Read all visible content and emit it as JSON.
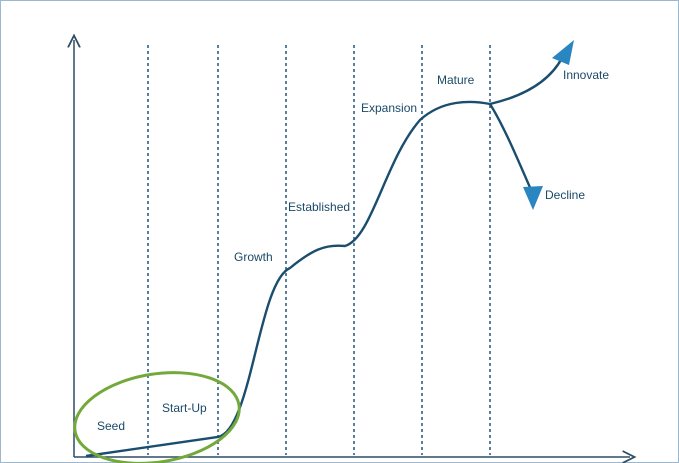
{
  "diagram": {
    "stages": [
      {
        "key": "seed",
        "label": "Seed"
      },
      {
        "key": "startup",
        "label": "Start-Up"
      },
      {
        "key": "growth",
        "label": "Growth"
      },
      {
        "key": "established",
        "label": "Established"
      },
      {
        "key": "expansion",
        "label": "Expansion"
      },
      {
        "key": "mature",
        "label": "Mature"
      }
    ],
    "outcomes": [
      {
        "key": "innovate",
        "label": "Innovate"
      },
      {
        "key": "decline",
        "label": "Decline"
      }
    ],
    "highlight": {
      "covers": [
        "Seed",
        "Start-Up"
      ]
    },
    "colors": {
      "curve": "#1a4d6e",
      "arrow_head": "#2a86c0",
      "divider": "#2e5f86",
      "axis": "#2e4d66",
      "highlight_ellipse": "#73a93a",
      "text": "#1b4a66",
      "frame": "#9fb7cc"
    }
  }
}
